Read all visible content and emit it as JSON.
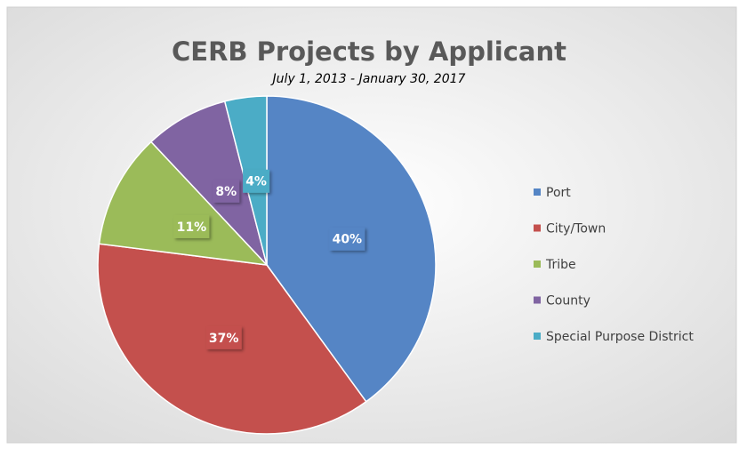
{
  "chart_data": {
    "type": "pie",
    "title": "CERB Projects by Applicant",
    "subtitle": "July 1, 2013 - January 30, 2017",
    "categories": [
      "Port",
      "City/Town",
      "Tribe",
      "County",
      "Special Purpose District"
    ],
    "values": [
      40,
      37,
      11,
      8,
      4
    ],
    "value_labels": [
      "40%",
      "37%",
      "11%",
      "8%",
      "4%"
    ],
    "colors": [
      "#5585c5",
      "#c4504d",
      "#9bbb59",
      "#8064a2",
      "#4bacc6"
    ],
    "legend": "right"
  }
}
